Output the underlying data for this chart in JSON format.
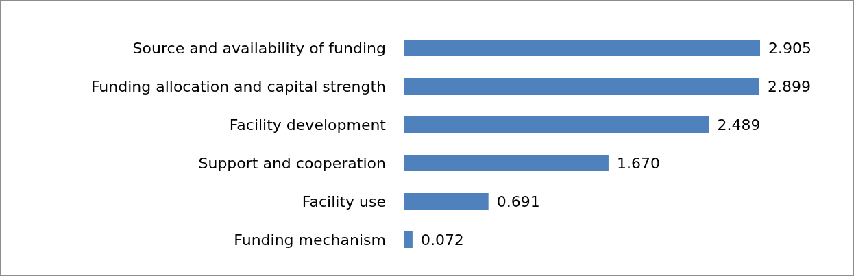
{
  "chart_data": {
    "type": "bar",
    "orientation": "horizontal",
    "categories": [
      "Source and availability of funding",
      "Funding allocation and capital strength",
      "Facility development",
      "Support and cooperation",
      "Facility use",
      "Funding mechanism"
    ],
    "values": [
      2.905,
      2.899,
      2.489,
      1.67,
      0.691,
      0.072
    ],
    "value_labels": [
      "2.905",
      "2.899",
      "2.489",
      "1.670",
      "0.691",
      "0.072"
    ],
    "color": "#4f81bd"
  }
}
